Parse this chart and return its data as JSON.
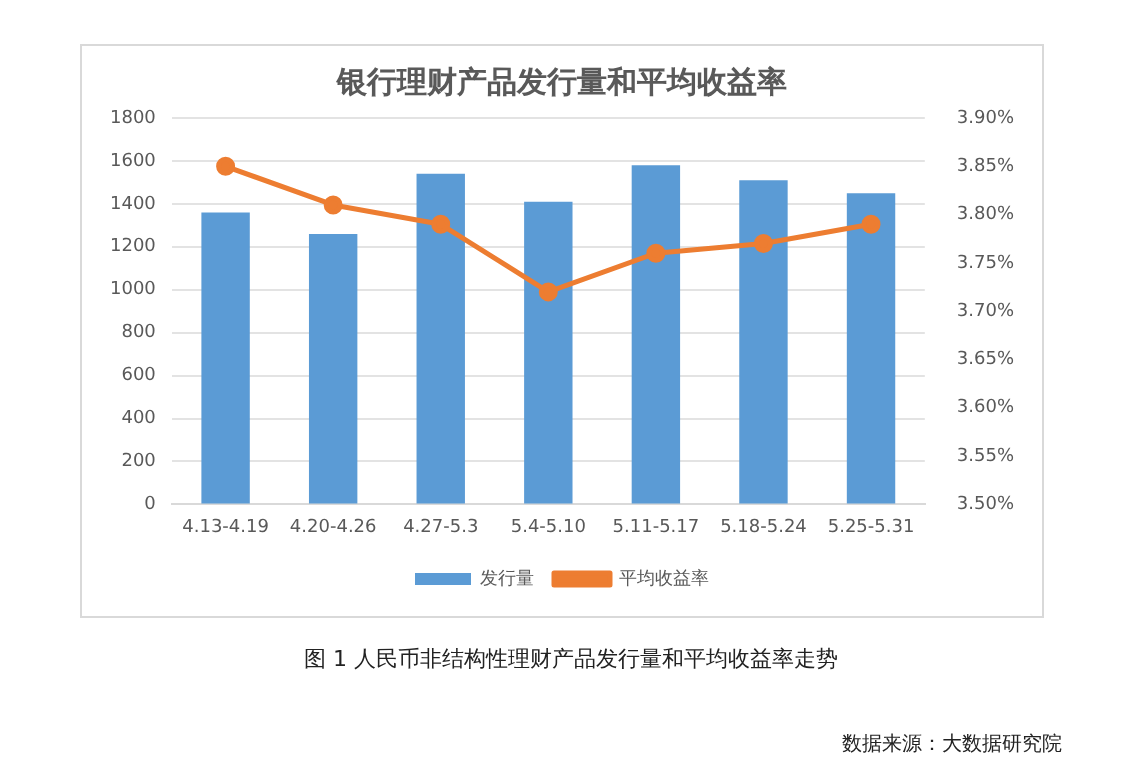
{
  "chart_data": {
    "type": "bar",
    "title": "银行理财产品发行量和平均收益率",
    "categories": [
      "4.13-4.19",
      "4.20-4.26",
      "4.27-5.3",
      "5.4-5.10",
      "5.11-5.17",
      "5.18-5.24",
      "5.25-5.31"
    ],
    "series": [
      {
        "name": "发行量",
        "color": "#5b9bd5",
        "values": [
          1360,
          1260,
          1540,
          1410,
          1580,
          1510,
          1450
        ]
      },
      {
        "name": "平均收益率",
        "type": "line",
        "axis": "y2",
        "color": "#ed7d31",
        "marker": "circle",
        "values": [
          3.85,
          3.81,
          3.79,
          3.72,
          3.76,
          3.77,
          3.79
        ]
      }
    ],
    "ylim": [
      0,
      1800
    ],
    "yticks": [
      0,
      200,
      400,
      600,
      800,
      1000,
      1200,
      1400,
      1600,
      1800
    ],
    "y2lim": [
      3.5,
      3.9
    ],
    "y2ticks": [
      {
        "value": 3.5,
        "label": "3.50%"
      },
      {
        "value": 3.55,
        "label": "3.55%"
      },
      {
        "value": 3.6,
        "label": "3.60%"
      },
      {
        "value": 3.65,
        "label": "3.65%"
      },
      {
        "value": 3.7,
        "label": "3.70%"
      },
      {
        "value": 3.75,
        "label": "3.75%"
      },
      {
        "value": 3.8,
        "label": "3.80%"
      },
      {
        "value": 3.85,
        "label": "3.85%"
      },
      {
        "value": 3.9,
        "label": "3.90%"
      }
    ],
    "grid": "y",
    "legend": "bottom",
    "annotations": [
      "图 1 人民币非结构性理财产品发行量和平均收益率走势",
      "数据来源：大数据研究院"
    ]
  }
}
